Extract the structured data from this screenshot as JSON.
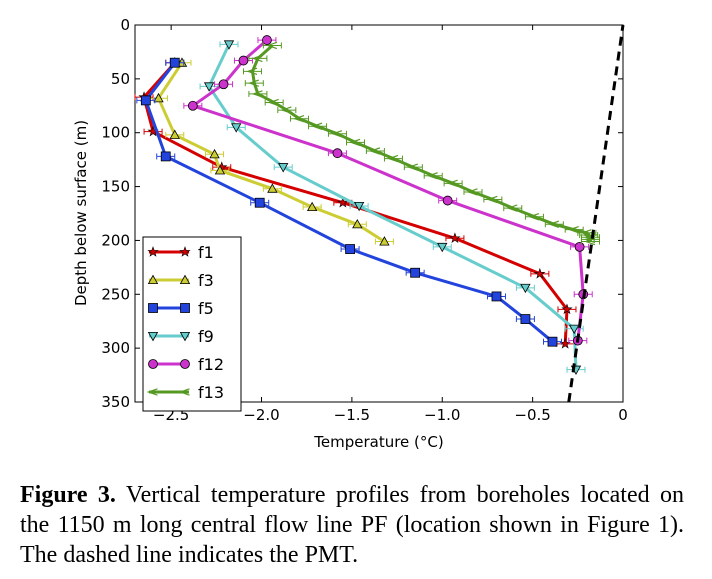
{
  "chart_data": {
    "type": "line",
    "title": "",
    "xlabel": "Temperature (°C)",
    "ylabel": "Depth below surface (m)",
    "xlim": [
      -2.7,
      0
    ],
    "ylim": [
      350,
      0
    ],
    "x_ticks": [
      -2.5,
      -2.0,
      -1.5,
      -1.0,
      -0.5,
      0
    ],
    "x_tick_labels": [
      "−2.5",
      "−2.0",
      "−1.5",
      "−1.0",
      "−0.5",
      "0"
    ],
    "y_ticks": [
      0,
      50,
      100,
      150,
      200,
      250,
      300,
      350
    ],
    "y_tick_labels": [
      "0",
      "50",
      "100",
      "150",
      "200",
      "250",
      "300",
      "350"
    ],
    "grid": false,
    "legend_position": "lower-left",
    "series": [
      {
        "name": "f1",
        "color": "#d40000",
        "marker": "star",
        "x": [
          -2.48,
          -2.65,
          -2.6,
          -2.22,
          -1.55,
          -0.93,
          -0.46,
          -0.31,
          -0.32
        ],
        "y": [
          35,
          67,
          99,
          132,
          165,
          198,
          231,
          264,
          296
        ]
      },
      {
        "name": "f3",
        "color": "#cccc33",
        "marker": "triangle-up",
        "x": [
          -2.44,
          -2.57,
          -2.48,
          -2.26,
          -2.23,
          -1.94,
          -1.72,
          -1.47,
          -1.32
        ],
        "y": [
          35,
          68,
          102,
          120,
          135,
          152,
          169,
          185,
          201
        ]
      },
      {
        "name": "f5",
        "color": "#2244dd",
        "marker": "square",
        "x": [
          -2.48,
          -2.64,
          -2.53,
          -2.01,
          -1.51,
          -1.15,
          -0.7,
          -0.54,
          -0.39
        ],
        "y": [
          35,
          70,
          122,
          165,
          208,
          230,
          252,
          273,
          294
        ]
      },
      {
        "name": "f9",
        "color": "#66cccc",
        "marker": "triangle-down",
        "x": [
          -2.18,
          -2.29,
          -2.14,
          -1.88,
          -1.46,
          -1.0,
          -0.54,
          -0.27,
          -0.26
        ],
        "y": [
          18,
          57,
          95,
          132,
          168,
          206,
          244,
          282,
          320
        ]
      },
      {
        "name": "f12",
        "color": "#cc33cc",
        "marker": "circle",
        "x": [
          -1.97,
          -2.1,
          -2.21,
          -2.38,
          -1.58,
          -0.97,
          -0.24,
          -0.22,
          -0.25
        ],
        "y": [
          14,
          33,
          55,
          75,
          119,
          163,
          206,
          250,
          293
        ]
      },
      {
        "name": "f13",
        "color": "#559922",
        "marker": "left-arrow",
        "x": [
          -1.94,
          -2.02,
          -2.05,
          -2.04,
          -2.02,
          -1.93,
          -1.86,
          -1.79,
          -1.69,
          -1.58,
          -1.48,
          -1.37,
          -1.27,
          -1.16,
          -1.05,
          -0.94,
          -0.83,
          -0.72,
          -0.61,
          -0.49,
          -0.38,
          -0.27,
          -0.2,
          -0.19,
          -0.18,
          -0.18,
          -0.18
        ],
        "y": [
          19,
          31,
          43,
          54,
          64,
          72,
          79,
          87,
          94,
          101,
          109,
          117,
          124,
          132,
          140,
          147,
          155,
          162,
          170,
          178,
          185,
          190,
          193,
          195,
          197,
          199,
          201
        ]
      }
    ],
    "reference_line": {
      "style": "dashed",
      "color": "#000000",
      "x": [
        -0.3,
        0.0
      ],
      "y": [
        350,
        0
      ]
    }
  },
  "caption": {
    "label": "Figure 3.",
    "text": "Vertical temperature profiles from boreholes located on the 1150 m long central flow line PF (location shown in Figure 1). The dashed line indicates the PMT."
  }
}
